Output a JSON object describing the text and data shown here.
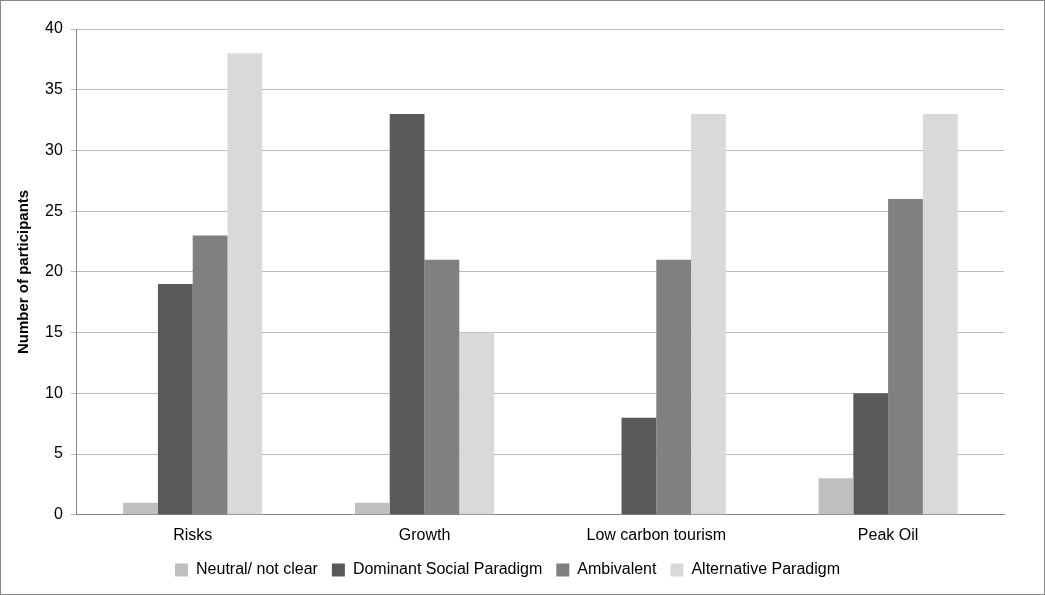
{
  "chart_data": {
    "type": "bar",
    "ylabel": "Number of participants",
    "categories": [
      "Risks",
      "Growth",
      "Low carbon tourism",
      "Peak Oil"
    ],
    "series": [
      {
        "name": "Neutral/ not clear",
        "color": "#bfbfbf",
        "values": [
          1,
          1,
          0,
          3
        ]
      },
      {
        "name": "Dominant Social Paradigm",
        "color": "#595959",
        "values": [
          19,
          33,
          8,
          10
        ]
      },
      {
        "name": "Ambivalent",
        "color": "#808080",
        "values": [
          23,
          21,
          21,
          26
        ]
      },
      {
        "name": "Alternative Paradigm",
        "color": "#d9d9d9",
        "values": [
          38,
          15,
          33,
          33
        ]
      }
    ],
    "ylim": [
      0,
      40
    ],
    "yticks": [
      0,
      5,
      10,
      15,
      20,
      25,
      30,
      35,
      40
    ],
    "grid": "y",
    "legend": "bottom"
  }
}
